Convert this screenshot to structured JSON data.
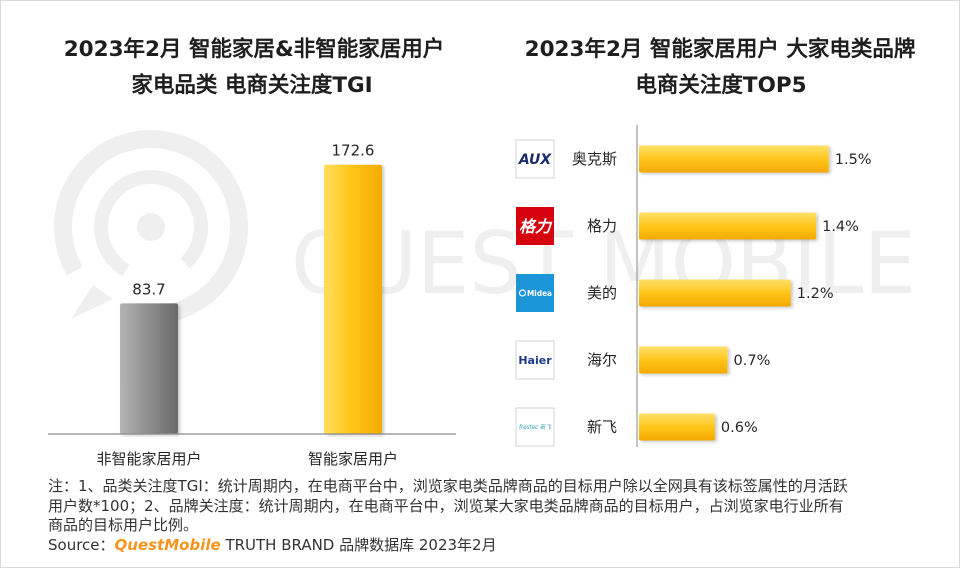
{
  "watermark": "QUEST MOBILE",
  "colors": {
    "accent_yellow": "#ffc20e",
    "gray_bar": "#8c8c8c",
    "source_brand_orange": "#f7941d"
  },
  "chart_data": [
    {
      "type": "bar",
      "orientation": "vertical",
      "title_lines": [
        "2023年2月 智能家居&非智能家居用户",
        "家电品类 电商关注度TGI"
      ],
      "categories": [
        "非智能家居用户",
        "智能家居用户"
      ],
      "values": [
        83.7,
        172.6
      ],
      "data_labels": [
        "83.7",
        "172.6"
      ],
      "colors": [
        "#8c8c8c",
        "#ffc20e"
      ],
      "ylim": [
        0,
        200
      ],
      "grid": false,
      "legend": "none"
    },
    {
      "type": "bar",
      "orientation": "horizontal",
      "title_lines": [
        "2023年2月 智能家居用户 大家电类品牌",
        "电商关注度TOP5"
      ],
      "categories": [
        "奥克斯",
        "格力",
        "美的",
        "海尔",
        "新飞"
      ],
      "values": [
        1.5,
        1.4,
        1.2,
        0.7,
        0.6
      ],
      "data_labels": [
        "1.5%",
        "1.4%",
        "1.2%",
        "0.7%",
        "0.6%"
      ],
      "xlim": [
        0,
        2
      ],
      "color": "#ffc20e",
      "grid": false,
      "legend": "none",
      "logos": [
        {
          "icon": "aux-logo",
          "text": "AUX",
          "bg": "#ffffff",
          "fg": "#1c2a6e"
        },
        {
          "icon": "gree-logo",
          "text": "格力",
          "bg": "#d7000f",
          "fg": "#ffffff"
        },
        {
          "icon": "midea-logo",
          "text": "Midea",
          "bg": "#1b95d8",
          "fg": "#ffffff"
        },
        {
          "icon": "haier-logo",
          "text": "Haier",
          "bg": "#ffffff",
          "fg": "#1a3a8a"
        },
        {
          "icon": "frestec-logo",
          "text": "frestec 新飞",
          "bg": "#ffffff",
          "fg": "#2aa0b5"
        }
      ]
    }
  ],
  "notes": {
    "lines": [
      "注：1、品类关注度TGI：统计周期内，在电商平台中，浏览家电类品牌商品的目标用户除以全网具有该标签属性的月活跃",
      "用户数*100；2、品牌关注度：统计周期内，在电商平台中，浏览某大家电类品牌商品的目标用户，占浏览家电行业所有",
      "商品的目标用户比例。"
    ],
    "source_label": "Source：",
    "source_brand": "QuestMobile",
    "source_rest": " TRUTH BRAND 品牌数据库 2023年2月"
  }
}
